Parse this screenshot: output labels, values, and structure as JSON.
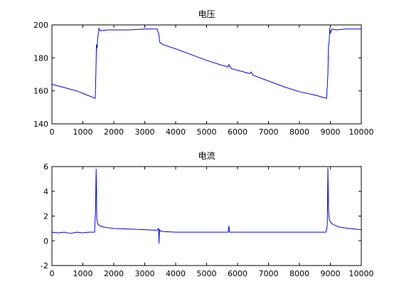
{
  "chart_data": [
    {
      "type": "line",
      "title": "电压",
      "xlabel": "",
      "ylabel": "",
      "xlim": [
        0,
        10000
      ],
      "ylim": [
        140,
        200
      ],
      "xticks": [
        0,
        1000,
        2000,
        3000,
        4000,
        5000,
        6000,
        7000,
        8000,
        9000,
        10000
      ],
      "yticks": [
        140,
        160,
        180,
        200
      ],
      "xtick_labels": [
        "0",
        "1000",
        "2000",
        "3000",
        "4000",
        "5000",
        "6000",
        "7000",
        "8000",
        "9000",
        "10000"
      ],
      "ytick_labels": [
        "140",
        "160",
        "180",
        "200"
      ],
      "grid": false,
      "color": "#0000ff",
      "series": [
        {
          "x": [
            0,
            200,
            400,
            600,
            800,
            1000,
            1200,
            1400,
            1420,
            1440,
            1460,
            1480,
            1520,
            1560,
            1600,
            1800,
            2000,
            2500,
            3000,
            3400,
            3460,
            3480,
            3500,
            3520,
            3600,
            4000,
            4500,
            5000,
            5500,
            5700,
            5720,
            5800,
            6000,
            6400,
            6440,
            6500,
            7000,
            7500,
            8000,
            8500,
            8880,
            8920,
            8940,
            8960,
            8980,
            9000,
            9050,
            9200,
            9500,
            10000
          ],
          "y": [
            164,
            163,
            162,
            161,
            160,
            158.5,
            157,
            155.5,
            170,
            188,
            186,
            192,
            198,
            196.5,
            196.5,
            197,
            197,
            197,
            197.5,
            197.5,
            194,
            190,
            189,
            189,
            188,
            185.5,
            182,
            178.5,
            175.5,
            174.5,
            176,
            173.5,
            172.5,
            170.5,
            171.5,
            169.5,
            166,
            162.5,
            159.5,
            157.5,
            155.5,
            170,
            188,
            189,
            198,
            195,
            197.5,
            197,
            197.5,
            197.5
          ]
        }
      ]
    },
    {
      "type": "line",
      "title": "电流",
      "xlabel": "",
      "ylabel": "",
      "xlim": [
        0,
        10000
      ],
      "ylim": [
        -2,
        6
      ],
      "xticks": [
        0,
        1000,
        2000,
        3000,
        4000,
        5000,
        6000,
        7000,
        8000,
        9000,
        10000
      ],
      "yticks": [
        -2,
        0,
        2,
        4,
        6
      ],
      "xtick_labels": [
        "0",
        "1000",
        "2000",
        "3000",
        "4000",
        "5000",
        "6000",
        "7000",
        "8000",
        "9000",
        "10000"
      ],
      "ytick_labels": [
        "-2",
        "0",
        "2",
        "4",
        "6"
      ],
      "grid": false,
      "color": "#0000ff",
      "series": [
        {
          "x": [
            0,
            200,
            400,
            600,
            800,
            1000,
            1200,
            1380,
            1410,
            1430,
            1440,
            1450,
            1470,
            1500,
            1560,
            1700,
            2000,
            2500,
            3000,
            3400,
            3450,
            3460,
            3470,
            3480,
            3500,
            3600,
            4000,
            5000,
            5600,
            5700,
            5720,
            5740,
            6000,
            7000,
            8000,
            8800,
            8860,
            8900,
            8910,
            8920,
            8940,
            8960,
            9000,
            9100,
            9300,
            9600,
            10000
          ],
          "y": [
            0.7,
            0.65,
            0.7,
            0.6,
            0.7,
            0.65,
            0.7,
            0.7,
            2.5,
            5.8,
            4,
            1.8,
            1.5,
            1.3,
            1.2,
            1.1,
            1,
            0.95,
            0.9,
            0.85,
            1,
            -0.2,
            0.4,
            0.9,
            0.8,
            0.75,
            0.7,
            0.7,
            0.7,
            0.7,
            1.2,
            0.7,
            0.7,
            0.7,
            0.7,
            0.7,
            0.7,
            1.2,
            3,
            5.9,
            2.5,
            1.8,
            1.5,
            1.3,
            1.1,
            1,
            0.9
          ]
        }
      ]
    }
  ]
}
